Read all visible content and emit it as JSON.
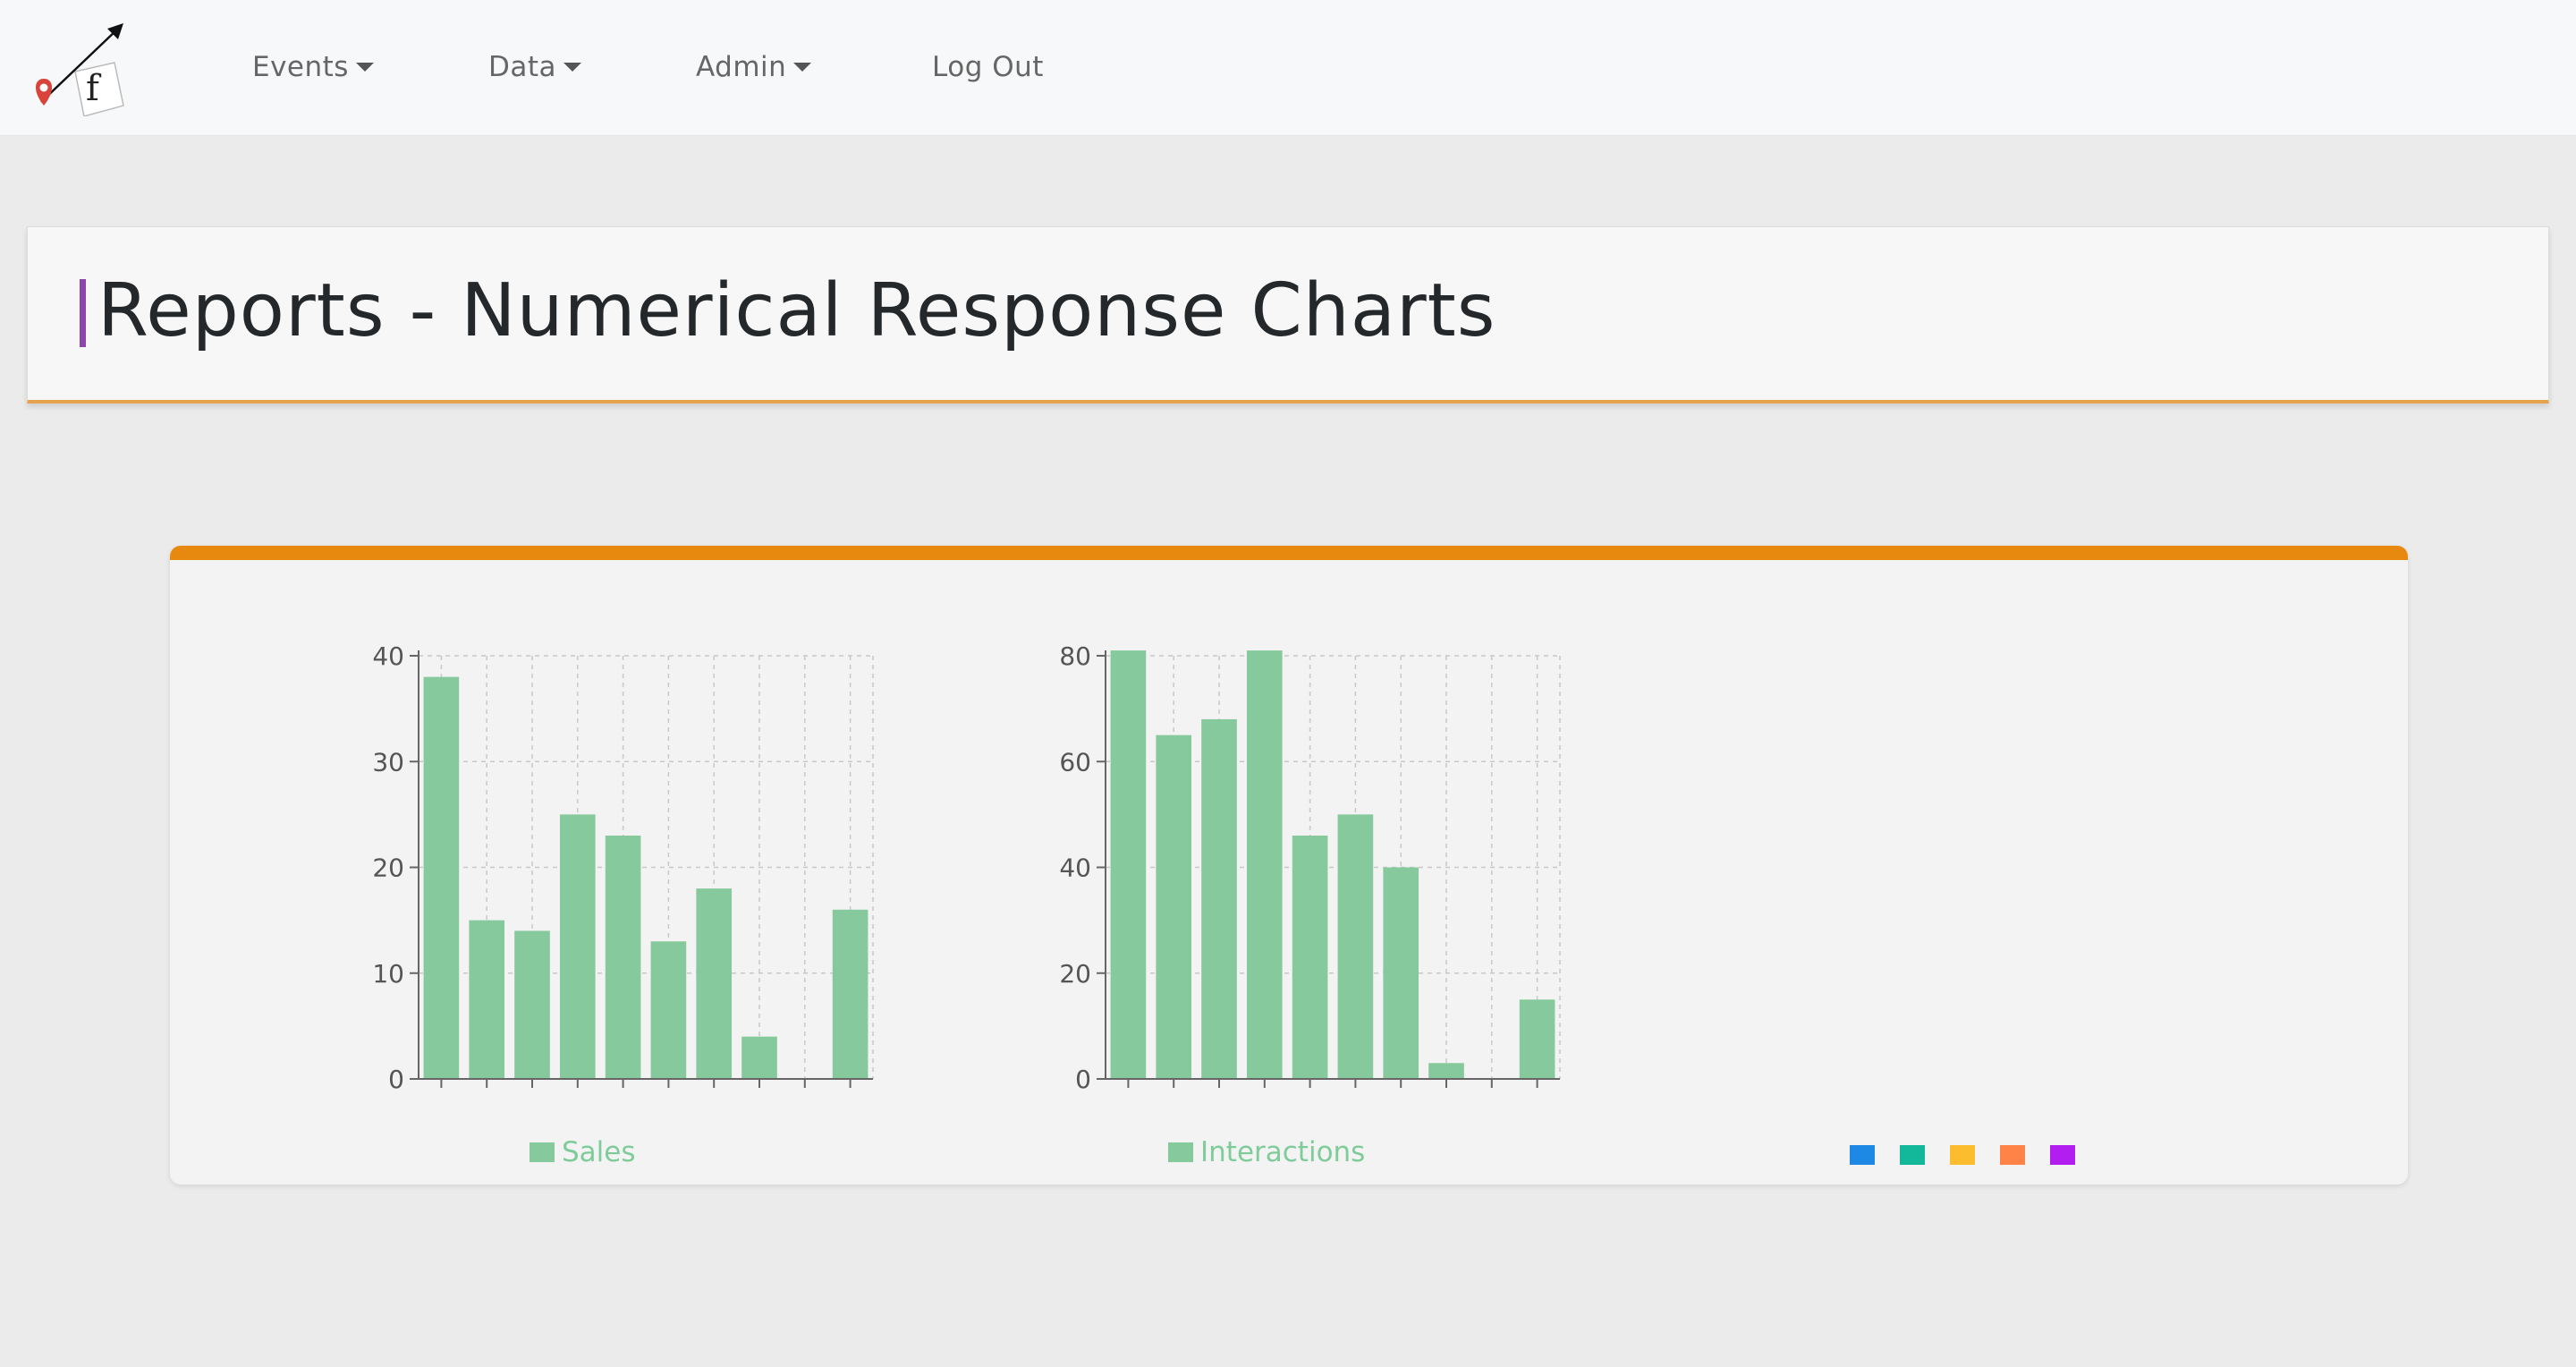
{
  "nav": {
    "items": [
      {
        "label": "Events",
        "dropdown": true
      },
      {
        "label": "Data",
        "dropdown": true
      },
      {
        "label": "Admin",
        "dropdown": true
      },
      {
        "label": "Log Out",
        "dropdown": false
      }
    ]
  },
  "page": {
    "title": "Reports - Numerical Response Charts",
    "accent_color": "#8e44ad",
    "panel_color": "#e8890f"
  },
  "chart_data": [
    {
      "type": "bar",
      "series_name": "Sales",
      "color": "#85c99c",
      "values": [
        38,
        15,
        14,
        25,
        23,
        13,
        18,
        4,
        0,
        16
      ],
      "ylim": [
        0,
        40
      ],
      "yticks": [
        0,
        10,
        20,
        30,
        40
      ],
      "grid": true,
      "legend": "bottom"
    },
    {
      "type": "bar",
      "series_name": "Interactions",
      "color": "#85c99c",
      "values": [
        81,
        65,
        68,
        81,
        46,
        50,
        40,
        3,
        0,
        15
      ],
      "ylim": [
        0,
        80
      ],
      "yticks": [
        0,
        20,
        40,
        60,
        80
      ],
      "grid": true,
      "legend": "bottom"
    }
  ],
  "empty_chart_legend_colors": [
    "#1e88e5",
    "#13b89a",
    "#fbbd2e",
    "#ff8346",
    "#b21ef0"
  ]
}
